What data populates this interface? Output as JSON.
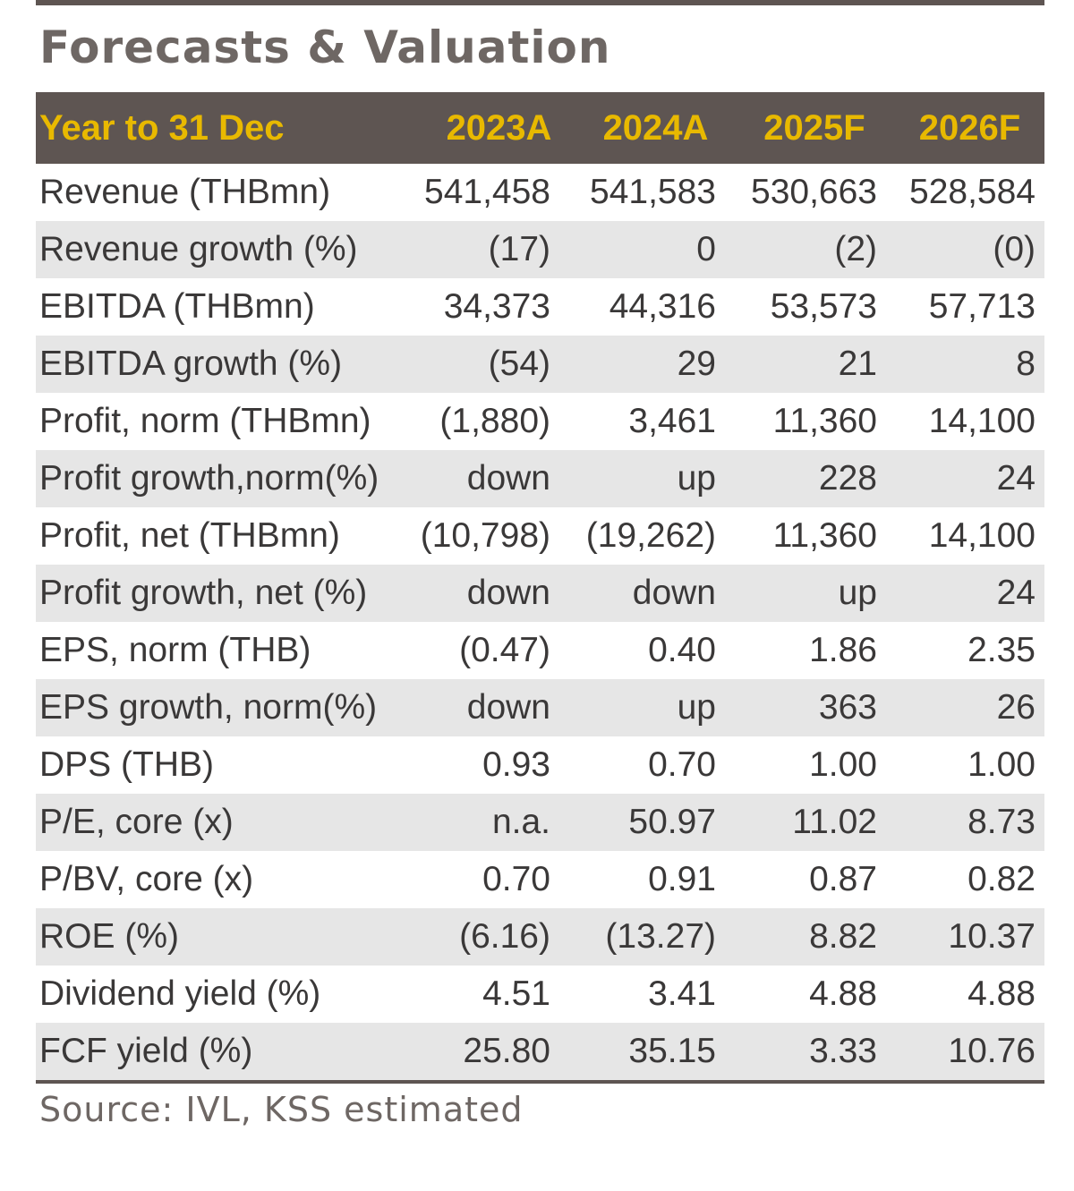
{
  "title": "Forecasts & Valuation",
  "columns": [
    "Year to 31 Dec",
    "2023A",
    "2024A",
    "2025F",
    "2026F"
  ],
  "rows": [
    {
      "label": "Revenue (THBmn)",
      "values": [
        "541,458",
        "541,583",
        "530,663",
        "528,584"
      ]
    },
    {
      "label": "Revenue growth (%)",
      "values": [
        "(17)",
        "0",
        "(2)",
        "(0)"
      ]
    },
    {
      "label": "EBITDA (THBmn)",
      "values": [
        "34,373",
        "44,316",
        "53,573",
        "57,713"
      ]
    },
    {
      "label": "EBITDA growth (%)",
      "values": [
        "(54)",
        "29",
        "21",
        "8"
      ]
    },
    {
      "label": "Profit, norm (THBmn)",
      "values": [
        "(1,880)",
        "3,461",
        "11,360",
        "14,100"
      ]
    },
    {
      "label": "Profit growth,norm(%)",
      "values": [
        "down",
        "up",
        "228",
        "24"
      ]
    },
    {
      "label": "Profit, net (THBmn)",
      "values": [
        "(10,798)",
        "(19,262)",
        "11,360",
        "14,100"
      ]
    },
    {
      "label": "Profit growth, net (%)",
      "values": [
        "down",
        "down",
        "up",
        "24"
      ]
    },
    {
      "label": "EPS, norm (THB)",
      "values": [
        "(0.47)",
        "0.40",
        "1.86",
        "2.35"
      ]
    },
    {
      "label": "EPS growth, norm(%)",
      "values": [
        "down",
        "up",
        "363",
        "26"
      ]
    },
    {
      "label": "DPS (THB)",
      "values": [
        "0.93",
        "0.70",
        "1.00",
        "1.00"
      ]
    },
    {
      "label": "P/E, core (x)",
      "values": [
        "n.a.",
        "50.97",
        "11.02",
        "8.73"
      ]
    },
    {
      "label": "P/BV, core (x)",
      "values": [
        "0.70",
        "0.91",
        "0.87",
        "0.82"
      ]
    },
    {
      "label": "ROE (%)",
      "values": [
        "(6.16)",
        "(13.27)",
        "8.82",
        "10.37"
      ]
    },
    {
      "label": "Dividend yield (%)",
      "values": [
        "4.51",
        "3.41",
        "4.88",
        "4.88"
      ]
    },
    {
      "label": "FCF yield (%)",
      "values": [
        "25.80",
        "35.15",
        "3.33",
        "10.76"
      ]
    }
  ],
  "source": "Source: IVL, KSS estimated",
  "colors": {
    "header_bg": "#5e5552",
    "header_text": "#e8b900",
    "shaded_row": "#e6e6e6",
    "title_text": "#6e6764"
  }
}
